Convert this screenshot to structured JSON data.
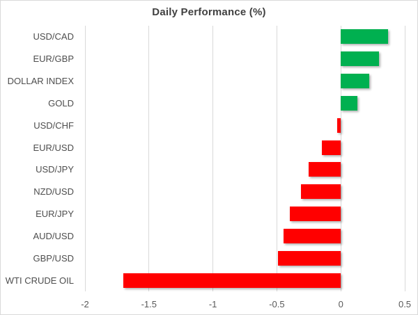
{
  "title": "Daily Performance (%)",
  "chart_data": {
    "type": "bar",
    "orientation": "horizontal",
    "title": "Daily Performance (%)",
    "xlabel": "",
    "ylabel": "",
    "categories": [
      "USD/CAD",
      "EUR/GBP",
      "DOLLAR INDEX",
      "GOLD",
      "USD/CHF",
      "EUR/USD",
      "USD/JPY",
      "NZD/USD",
      "EUR/JPY",
      "AUD/USD",
      "GBP/USD",
      "WTI CRUDE OIL"
    ],
    "values": [
      0.37,
      0.3,
      0.22,
      0.13,
      -0.03,
      -0.15,
      -0.25,
      -0.31,
      -0.4,
      -0.45,
      -0.49,
      -1.7
    ],
    "xlim": [
      -2,
      0.5
    ],
    "xticks": [
      -2,
      -1.5,
      -1,
      -0.5,
      0,
      0.5
    ],
    "xtick_labels": [
      "-2",
      "-1.5",
      "-1",
      "-0.5",
      "0",
      "0.5"
    ],
    "grid": true,
    "legend": false,
    "positive_color": "#00B050",
    "negative_color": "#FF0000",
    "gridline_color": "#D9D9D9"
  }
}
